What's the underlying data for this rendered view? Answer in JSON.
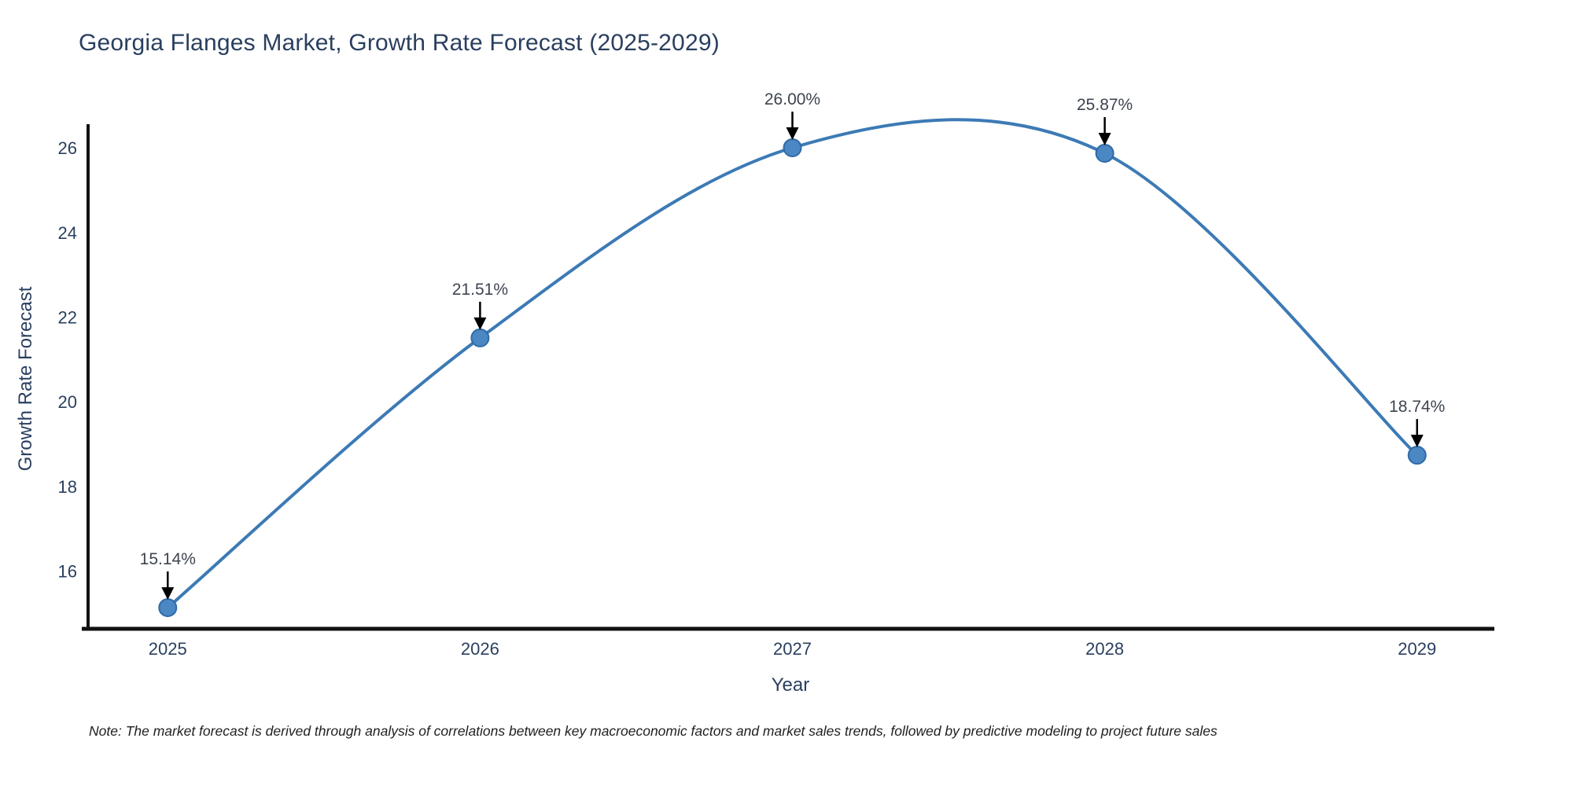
{
  "title": "Georgia Flanges Market, Growth Rate Forecast (2025-2029)",
  "note": "Note: The market forecast is derived through analysis of correlations between key macroeconomic factors and market sales trends, followed by predictive modeling to project future sales",
  "chart_data": {
    "type": "line",
    "line_shape": "spline",
    "title": "Georgia Flanges Market, Growth Rate Forecast (2025-2029)",
    "xlabel": "Year",
    "ylabel": "Growth Rate Forecast",
    "x": [
      2025,
      2026,
      2027,
      2028,
      2029
    ],
    "y": [
      15.14,
      21.51,
      26.0,
      25.87,
      18.74
    ],
    "point_labels": [
      "15.14%",
      "21.51%",
      "26.00%",
      "25.87%",
      "18.74%"
    ],
    "xticks": [
      "2025",
      "2026",
      "2027",
      "2028",
      "2029"
    ],
    "yticks": [
      "16",
      "18",
      "20",
      "22",
      "24",
      "26"
    ],
    "ytick_values": [
      16,
      18,
      20,
      22,
      24,
      26
    ],
    "xlim": [
      2024.745,
      2029.26
    ],
    "ylim": [
      14.64,
      26.52
    ],
    "grid": false,
    "legend_position": "none",
    "annotation_arrows": true,
    "colors": {
      "line": "#3c7ab5",
      "marker_fill": "#4b87c2",
      "marker_stroke": "#2e6ba8",
      "axis_line": "#111111",
      "axis_text": "#2a3f5f",
      "annotation_text": "#3d4450",
      "arrow": "#000000",
      "background": "#ffffff"
    }
  }
}
